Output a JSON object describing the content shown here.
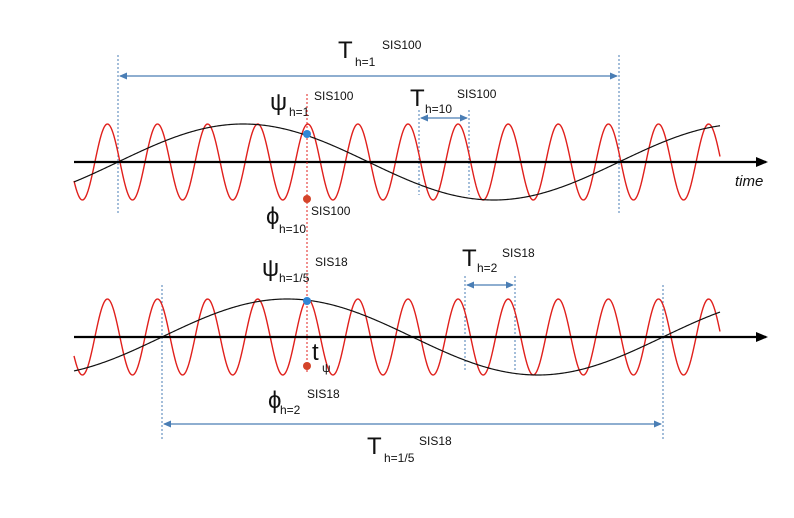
{
  "diagram": {
    "time_axis_label": "time",
    "top_panel": {
      "period_long": {
        "symbol": "T",
        "subscript": "h=1",
        "superscript": "SIS100"
      },
      "period_short": {
        "symbol": "T",
        "subscript": "h=10",
        "superscript": "SIS100"
      },
      "psi_label": {
        "symbol": "ψ",
        "subscript": "h=1",
        "superscript": "SIS100"
      },
      "phi_label": {
        "symbol": "ϕ",
        "subscript": "h=10",
        "superscript": "SIS100"
      },
      "red_harmonic": 10,
      "black_harmonic": 1
    },
    "bottom_panel": {
      "period_long": {
        "symbol": "T",
        "subscript": "h=1/5",
        "superscript": "SIS18"
      },
      "period_short": {
        "symbol": "T",
        "subscript": "h=2",
        "superscript": "SIS18"
      },
      "psi_label": {
        "symbol": "ψ",
        "subscript": "h=1/5",
        "superscript": "SIS18"
      },
      "phi_label": {
        "symbol": "ϕ",
        "subscript": "h=2",
        "superscript": "SIS18"
      },
      "t_psi_label": {
        "symbol": "t",
        "subscript": "ψ"
      },
      "red_harmonic": 10,
      "black_harmonic": 1
    },
    "colors": {
      "red_wave": "#e0201c",
      "black_wave": "#111111",
      "axis": "#000000",
      "dimension_arrow": "#4a7eb5",
      "blue_dot": "#2f86d6",
      "red_dot": "#d4442a",
      "guide_line": "#e0201c"
    }
  }
}
